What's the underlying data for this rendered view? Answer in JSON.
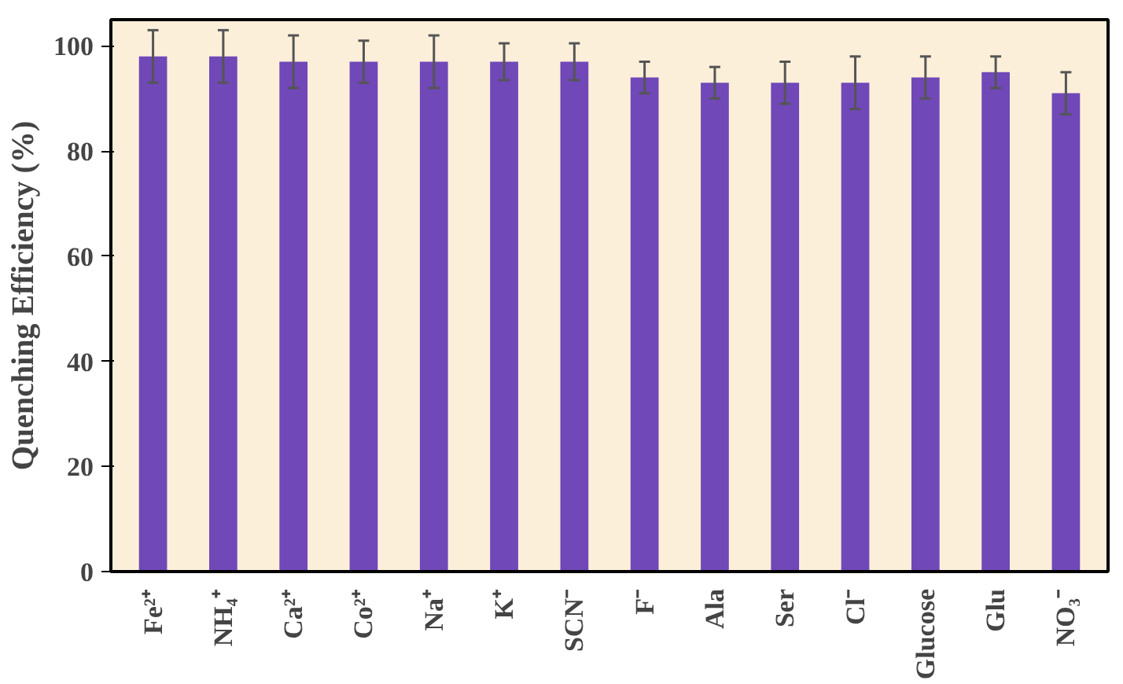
{
  "chart_data": {
    "type": "bar",
    "ylabel": "Quenching Efficiency (%)",
    "categories": [
      "Fe²⁺",
      "NH₄⁺",
      "Ca²⁺",
      "Co²⁺",
      "Na⁺",
      "K⁺",
      "SCN⁻",
      "F⁻",
      "Ala",
      "Ser",
      "Cl⁻",
      "Glucose",
      "Glu",
      "NO₃⁻"
    ],
    "values": [
      98,
      98,
      97,
      97,
      97,
      97,
      97,
      94,
      93,
      93,
      93,
      94,
      95,
      91
    ],
    "errors": [
      5,
      5,
      5,
      4,
      5,
      3.5,
      3.5,
      3,
      3,
      4,
      5,
      4,
      3,
      4
    ],
    "color": "#7048b8",
    "ylim": [
      0,
      105
    ],
    "yticks": [
      0,
      20,
      40,
      60,
      80,
      100
    ],
    "grid": false
  }
}
